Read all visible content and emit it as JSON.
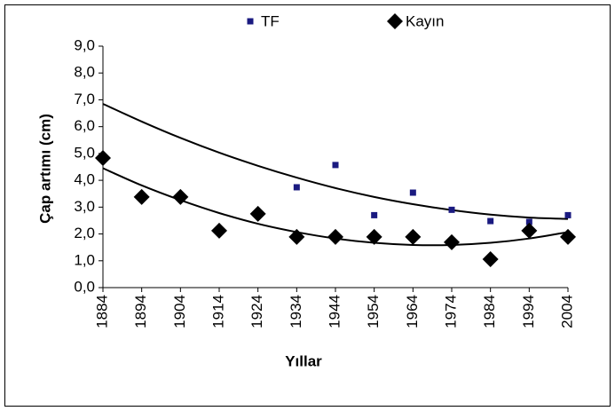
{
  "chart_data": {
    "type": "scatter",
    "x_label": "Yıllar",
    "y_label": "Çap artımı (cm)",
    "categories": [
      "1884",
      "1894",
      "1904",
      "1914",
      "1924",
      "1934",
      "1944",
      "1954",
      "1964",
      "1974",
      "1984",
      "1994",
      "2004"
    ],
    "series": [
      {
        "name": "TF",
        "color": "#1a1a80",
        "marker": "square",
        "values": [
          null,
          null,
          null,
          null,
          null,
          3.74,
          4.57,
          2.7,
          3.54,
          2.9,
          2.48,
          2.45,
          2.7
        ],
        "trend": [
          6.85,
          6.19,
          5.58,
          5.03,
          4.54,
          4.1,
          3.71,
          3.38,
          3.11,
          2.89,
          2.72,
          2.61,
          2.56
        ]
      },
      {
        "name": "Kayın",
        "color": "#000000",
        "marker": "diamond",
        "values": [
          4.83,
          3.38,
          3.38,
          2.12,
          2.75,
          1.89,
          1.89,
          1.89,
          1.89,
          1.69,
          1.06,
          2.12,
          1.89
        ],
        "trend": [
          4.45,
          3.81,
          3.26,
          2.78,
          2.38,
          2.07,
          1.83,
          1.67,
          1.59,
          1.59,
          1.67,
          1.83,
          2.07
        ]
      }
    ],
    "trend_color": "#000000",
    "ylim": [
      0,
      9
    ],
    "yticks": [
      {
        "value": 0,
        "label": "0,0"
      },
      {
        "value": 1,
        "label": "1,0"
      },
      {
        "value": 2,
        "label": "2,0"
      },
      {
        "value": 3,
        "label": "3,0"
      },
      {
        "value": 4,
        "label": "4,0"
      },
      {
        "value": 5,
        "label": "5,0"
      },
      {
        "value": 6,
        "label": "6,0"
      },
      {
        "value": 7,
        "label": "7,0"
      },
      {
        "value": 8,
        "label": "8,0"
      },
      {
        "value": 9,
        "label": "9,0"
      }
    ],
    "grid": false,
    "legend": "top"
  }
}
